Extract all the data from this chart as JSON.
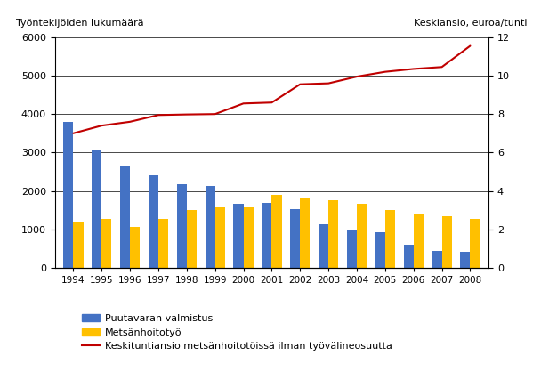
{
  "years": [
    1994,
    1995,
    1996,
    1997,
    1998,
    1999,
    2000,
    2001,
    2002,
    2003,
    2004,
    2005,
    2006,
    2007,
    2008
  ],
  "puutavaran": [
    3800,
    3080,
    2670,
    2400,
    2180,
    2120,
    1670,
    1680,
    1530,
    1130,
    1000,
    920,
    600,
    450,
    420
  ],
  "metsanhoito": [
    1180,
    1280,
    1070,
    1270,
    1500,
    1580,
    1580,
    1890,
    1800,
    1770,
    1660,
    1510,
    1420,
    1350,
    1270
  ],
  "keskiansio": [
    7.0,
    7.4,
    7.6,
    7.95,
    7.98,
    8.0,
    8.55,
    8.6,
    9.55,
    9.6,
    9.95,
    10.2,
    10.35,
    10.45,
    11.55
  ],
  "bar_color_blue": "#4472C4",
  "bar_color_yellow": "#FFC000",
  "line_color": "#C00000",
  "ylim_left": [
    0,
    6000
  ],
  "ylim_right": [
    0,
    12
  ],
  "ylabel_left": "Työntekijöiden lukumäärä",
  "ylabel_right": "Keskiansio, euroa/tunti",
  "legend_blue": "Puutavaran valmistus",
  "legend_yellow": "Metsänhoitotyö",
  "legend_red": "Keskituntiansio metsänhoitotöissä ilman työvälineosuutta",
  "yticks_left": [
    0,
    1000,
    2000,
    3000,
    4000,
    5000,
    6000
  ],
  "yticks_right": [
    0,
    2,
    4,
    6,
    8,
    10,
    12
  ],
  "background_color": "#ffffff",
  "bar_width": 0.35,
  "figwidth": 6.17,
  "figheight": 4.18,
  "dpi": 100
}
